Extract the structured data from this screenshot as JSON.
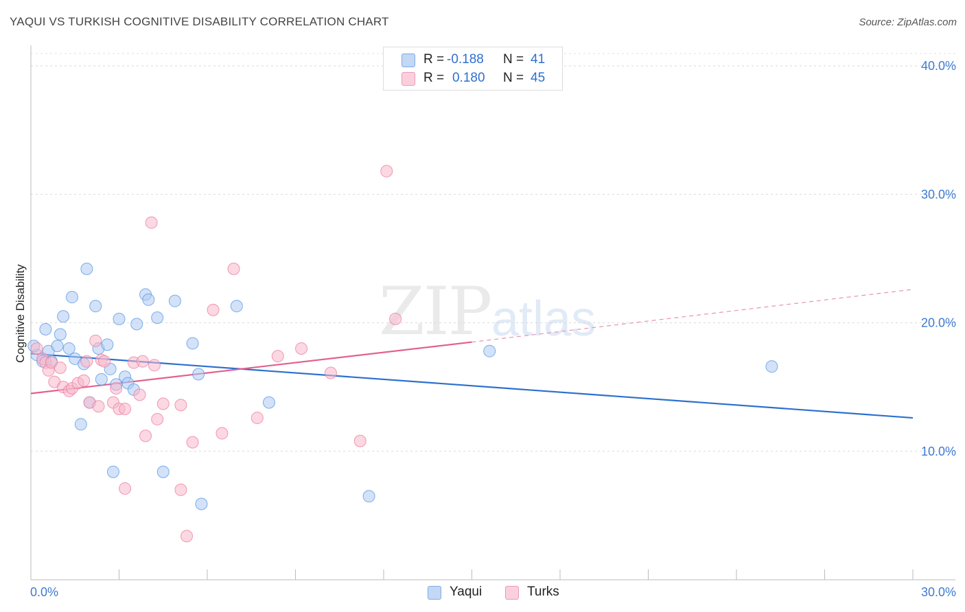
{
  "header": {
    "title": "YAQUI VS TURKISH COGNITIVE DISABILITY CORRELATION CHART",
    "source": "Source: ZipAtlas.com"
  },
  "watermark": {
    "zip": "ZIP",
    "atlas": "atlas"
  },
  "legend": {
    "rows": [
      {
        "r_label": "R =",
        "r_value": "-0.188",
        "n_label": "N =",
        "n_value": "41",
        "color": "#aecbf2"
      },
      {
        "r_label": "R =",
        "r_value": "0.180",
        "n_label": "N =",
        "n_value": "45",
        "color": "#f7b8cb"
      }
    ]
  },
  "bottom_legend": {
    "series1": "Yaqui",
    "series2": "Turks"
  },
  "chart_data": {
    "type": "scatter",
    "title": "YAQUI VS TURKISH COGNITIVE DISABILITY CORRELATION CHART",
    "xlabel": "",
    "ylabel": "Cognitive Disability",
    "xlim": [
      0,
      30
    ],
    "ylim": [
      0,
      40
    ],
    "x_tick_labels": [
      "0.0%",
      "30.0%"
    ],
    "y_ticks": [
      10,
      20,
      30,
      40
    ],
    "y_tick_labels": [
      "10.0%",
      "20.0%",
      "30.0%",
      "40.0%"
    ],
    "grid": true,
    "series": [
      {
        "name": "Yaqui",
        "color": "#5b9be6",
        "fill": "#aecbf2",
        "r": -0.188,
        "n": 41,
        "trend": {
          "x0": 0,
          "y0": 17.6,
          "x1": 30,
          "y1": 12.6,
          "style": "solid"
        },
        "points": [
          [
            0.2,
            17.5
          ],
          [
            0.4,
            17.0
          ],
          [
            0.5,
            19.5
          ],
          [
            0.6,
            17.8
          ],
          [
            0.7,
            17.0
          ],
          [
            0.9,
            18.2
          ],
          [
            1.0,
            19.1
          ],
          [
            1.1,
            20.5
          ],
          [
            1.3,
            18.0
          ],
          [
            1.4,
            22.0
          ],
          [
            1.5,
            17.2
          ],
          [
            1.7,
            12.1
          ],
          [
            1.8,
            16.8
          ],
          [
            1.9,
            24.2
          ],
          [
            2.0,
            13.8
          ],
          [
            2.2,
            21.3
          ],
          [
            2.3,
            18.0
          ],
          [
            2.4,
            15.6
          ],
          [
            2.6,
            18.3
          ],
          [
            2.7,
            16.4
          ],
          [
            2.8,
            8.4
          ],
          [
            2.9,
            15.2
          ],
          [
            3.0,
            20.3
          ],
          [
            3.2,
            15.8
          ],
          [
            3.3,
            15.3
          ],
          [
            3.5,
            14.8
          ],
          [
            3.6,
            19.9
          ],
          [
            3.9,
            22.2
          ],
          [
            4.0,
            21.8
          ],
          [
            4.3,
            20.4
          ],
          [
            4.5,
            8.4
          ],
          [
            4.9,
            21.7
          ],
          [
            5.5,
            18.4
          ],
          [
            5.7,
            16.0
          ],
          [
            5.8,
            5.9
          ],
          [
            7.0,
            21.3
          ],
          [
            8.1,
            13.8
          ],
          [
            11.5,
            6.5
          ],
          [
            15.6,
            17.8
          ],
          [
            25.2,
            16.6
          ],
          [
            0.1,
            18.2
          ]
        ]
      },
      {
        "name": "Turks",
        "color": "#ee7fa4",
        "fill": "#f7b8cb",
        "r": 0.18,
        "n": 45,
        "trend": {
          "x0": 0,
          "y0": 14.5,
          "x1": 15,
          "y1": 18.5,
          "style": "solid",
          "dash_to": {
            "x": 30,
            "y": 22.6
          }
        },
        "points": [
          [
            0.2,
            18.0
          ],
          [
            0.4,
            17.2
          ],
          [
            0.5,
            16.9
          ],
          [
            0.6,
            16.3
          ],
          [
            0.7,
            16.9
          ],
          [
            0.8,
            15.4
          ],
          [
            1.0,
            16.5
          ],
          [
            1.1,
            15.0
          ],
          [
            1.3,
            14.7
          ],
          [
            1.4,
            14.9
          ],
          [
            1.6,
            15.3
          ],
          [
            1.8,
            15.5
          ],
          [
            1.9,
            17.0
          ],
          [
            2.0,
            13.8
          ],
          [
            2.2,
            18.6
          ],
          [
            2.3,
            13.5
          ],
          [
            2.4,
            17.1
          ],
          [
            2.5,
            17.0
          ],
          [
            2.8,
            13.8
          ],
          [
            2.9,
            14.9
          ],
          [
            3.0,
            13.3
          ],
          [
            3.2,
            13.3
          ],
          [
            3.2,
            7.1
          ],
          [
            3.5,
            16.9
          ],
          [
            3.7,
            14.4
          ],
          [
            3.8,
            17.0
          ],
          [
            3.9,
            11.2
          ],
          [
            4.1,
            27.8
          ],
          [
            4.2,
            16.7
          ],
          [
            4.3,
            12.5
          ],
          [
            4.5,
            13.7
          ],
          [
            5.1,
            13.6
          ],
          [
            5.1,
            7.0
          ],
          [
            5.3,
            3.4
          ],
          [
            5.5,
            10.7
          ],
          [
            6.2,
            21.0
          ],
          [
            6.5,
            11.4
          ],
          [
            6.9,
            24.2
          ],
          [
            7.7,
            12.6
          ],
          [
            8.4,
            17.4
          ],
          [
            9.2,
            18.0
          ],
          [
            10.2,
            16.1
          ],
          [
            11.2,
            10.8
          ],
          [
            12.1,
            31.8
          ],
          [
            12.4,
            20.3
          ]
        ]
      }
    ]
  }
}
